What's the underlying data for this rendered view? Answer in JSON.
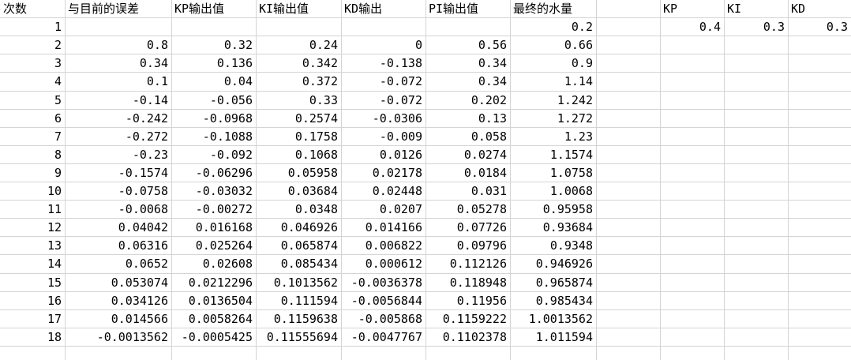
{
  "sheet": {
    "headers": [
      "次数",
      "与目前的误差",
      "KP输出值",
      "KI输出值",
      "KD输出",
      "PI输出值",
      "最终的水量",
      "",
      "KP",
      "KI",
      "KD"
    ],
    "rows": [
      [
        "1",
        "",
        "",
        "",
        "",
        "",
        "0.2",
        "",
        "0.4",
        "0.3",
        "0.3"
      ],
      [
        "2",
        "0.8",
        "0.32",
        "0.24",
        "0",
        "0.56",
        "0.66",
        "",
        "",
        "",
        ""
      ],
      [
        "3",
        "0.34",
        "0.136",
        "0.342",
        "-0.138",
        "0.34",
        "0.9",
        "",
        "",
        "",
        ""
      ],
      [
        "4",
        "0.1",
        "0.04",
        "0.372",
        "-0.072",
        "0.34",
        "1.14",
        "",
        "",
        "",
        ""
      ],
      [
        "5",
        "-0.14",
        "-0.056",
        "0.33",
        "-0.072",
        "0.202",
        "1.242",
        "",
        "",
        "",
        ""
      ],
      [
        "6",
        "-0.242",
        "-0.0968",
        "0.2574",
        "-0.0306",
        "0.13",
        "1.272",
        "",
        "",
        "",
        ""
      ],
      [
        "7",
        "-0.272",
        "-0.1088",
        "0.1758",
        "-0.009",
        "0.058",
        "1.23",
        "",
        "",
        "",
        ""
      ],
      [
        "8",
        "-0.23",
        "-0.092",
        "0.1068",
        "0.0126",
        "0.0274",
        "1.1574",
        "",
        "",
        "",
        ""
      ],
      [
        "9",
        "-0.1574",
        "-0.06296",
        "0.05958",
        "0.02178",
        "0.0184",
        "1.0758",
        "",
        "",
        "",
        ""
      ],
      [
        "10",
        "-0.0758",
        "-0.03032",
        "0.03684",
        "0.02448",
        "0.031",
        "1.0068",
        "",
        "",
        "",
        ""
      ],
      [
        "11",
        "-0.0068",
        "-0.00272",
        "0.0348",
        "0.0207",
        "0.05278",
        "0.95958",
        "",
        "",
        "",
        ""
      ],
      [
        "12",
        "0.04042",
        "0.016168",
        "0.046926",
        "0.014166",
        "0.07726",
        "0.93684",
        "",
        "",
        "",
        ""
      ],
      [
        "13",
        "0.06316",
        "0.025264",
        "0.065874",
        "0.006822",
        "0.09796",
        "0.9348",
        "",
        "",
        "",
        ""
      ],
      [
        "14",
        "0.0652",
        "0.02608",
        "0.085434",
        "0.000612",
        "0.112126",
        "0.946926",
        "",
        "",
        "",
        ""
      ],
      [
        "15",
        "0.053074",
        "0.0212296",
        "0.1013562",
        "-0.0036378",
        "0.118948",
        "0.965874",
        "",
        "",
        "",
        ""
      ],
      [
        "16",
        "0.034126",
        "0.0136504",
        "0.111594",
        "-0.0056844",
        "0.11956",
        "0.985434",
        "",
        "",
        "",
        ""
      ],
      [
        "17",
        "0.014566",
        "0.0058264",
        "0.1159638",
        "-0.005868",
        "0.1159222",
        "1.0013562",
        "",
        "",
        "",
        ""
      ],
      [
        "18",
        "-0.0013562",
        "-0.0005425",
        "0.11555694",
        "-0.0047767",
        "0.1102378",
        "1.011594",
        "",
        "",
        "",
        ""
      ]
    ]
  }
}
